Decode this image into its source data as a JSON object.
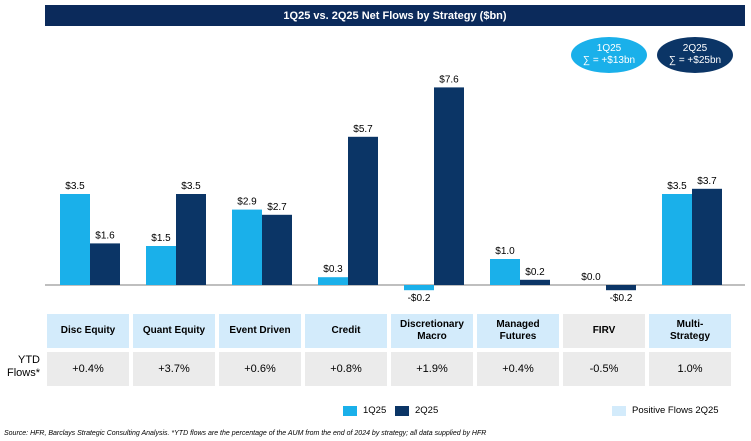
{
  "title": "1Q25 vs. 2Q25 Net Flows by Strategy ($bn)",
  "bubbles": [
    {
      "line1": "1Q25",
      "line2": "∑ = +$13bn",
      "color": "#1ab0ea"
    },
    {
      "line1": "2Q25",
      "line2": "∑ = +$25bn",
      "color": "#0b3566"
    }
  ],
  "chart_data": {
    "type": "bar",
    "title": "1Q25 vs. 2Q25 Net Flows by Strategy ($bn)",
    "categories": [
      "Disc Equity",
      "Quant Equity",
      "Event Driven",
      "Credit",
      "Discretionary Macro",
      "Managed Futures",
      "FIRV",
      "Multi-Strategy"
    ],
    "series": [
      {
        "name": "1Q25",
        "color": "#1ab0ea",
        "values": [
          3.5,
          1.5,
          2.9,
          0.3,
          -0.2,
          1.0,
          0.0,
          3.5
        ],
        "labels": [
          "$3.5",
          "$1.5",
          "$2.9",
          "$0.3",
          "-$0.2",
          "$1.0",
          "$0.0",
          "$3.5"
        ]
      },
      {
        "name": "2Q25",
        "color": "#0b3566",
        "values": [
          1.6,
          3.5,
          2.7,
          5.7,
          7.6,
          0.2,
          -0.2,
          3.7
        ],
        "labels": [
          "$1.6",
          "$3.5",
          "$2.7",
          "$5.7",
          "$7.6",
          "$0.2",
          "-$0.2",
          "$3.7"
        ]
      }
    ],
    "ylim": [
      -0.3,
      8.1
    ],
    "grid": false
  },
  "strategies": [
    {
      "name": "Disc Equity",
      "positive_2q25": true
    },
    {
      "name": "Quant Equity",
      "positive_2q25": true
    },
    {
      "name": "Event Driven",
      "positive_2q25": true
    },
    {
      "name": "Credit",
      "positive_2q25": true
    },
    {
      "name": "Discretionary\nMacro",
      "positive_2q25": true
    },
    {
      "name": "Managed\nFutures",
      "positive_2q25": true
    },
    {
      "name": "FIRV",
      "positive_2q25": false
    },
    {
      "name": "Multi-\nStrategy",
      "positive_2q25": true
    }
  ],
  "ytd": {
    "label": "YTD\nFlows*",
    "values": [
      "+0.4%",
      "+3.7%",
      "+0.6%",
      "+0.8%",
      "+1.9%",
      "+0.4%",
      "-0.5%",
      "1.0%"
    ]
  },
  "legend": {
    "s1": "1Q25",
    "s2": "2Q25",
    "positive": "Positive Flows 2Q25"
  },
  "colors": {
    "series1": "#1ab0ea",
    "series2": "#0b3566",
    "title_bg": "#0b2a5b",
    "positive_bg": "#d3ebfb",
    "neutral_bg": "#ebebeb"
  },
  "source": "Source: HFR, Barclays Strategic Consulting Analysis. *YTD flows are the percentage of the AUM from the end of 2024 by strategy; all data supplied by HFR"
}
